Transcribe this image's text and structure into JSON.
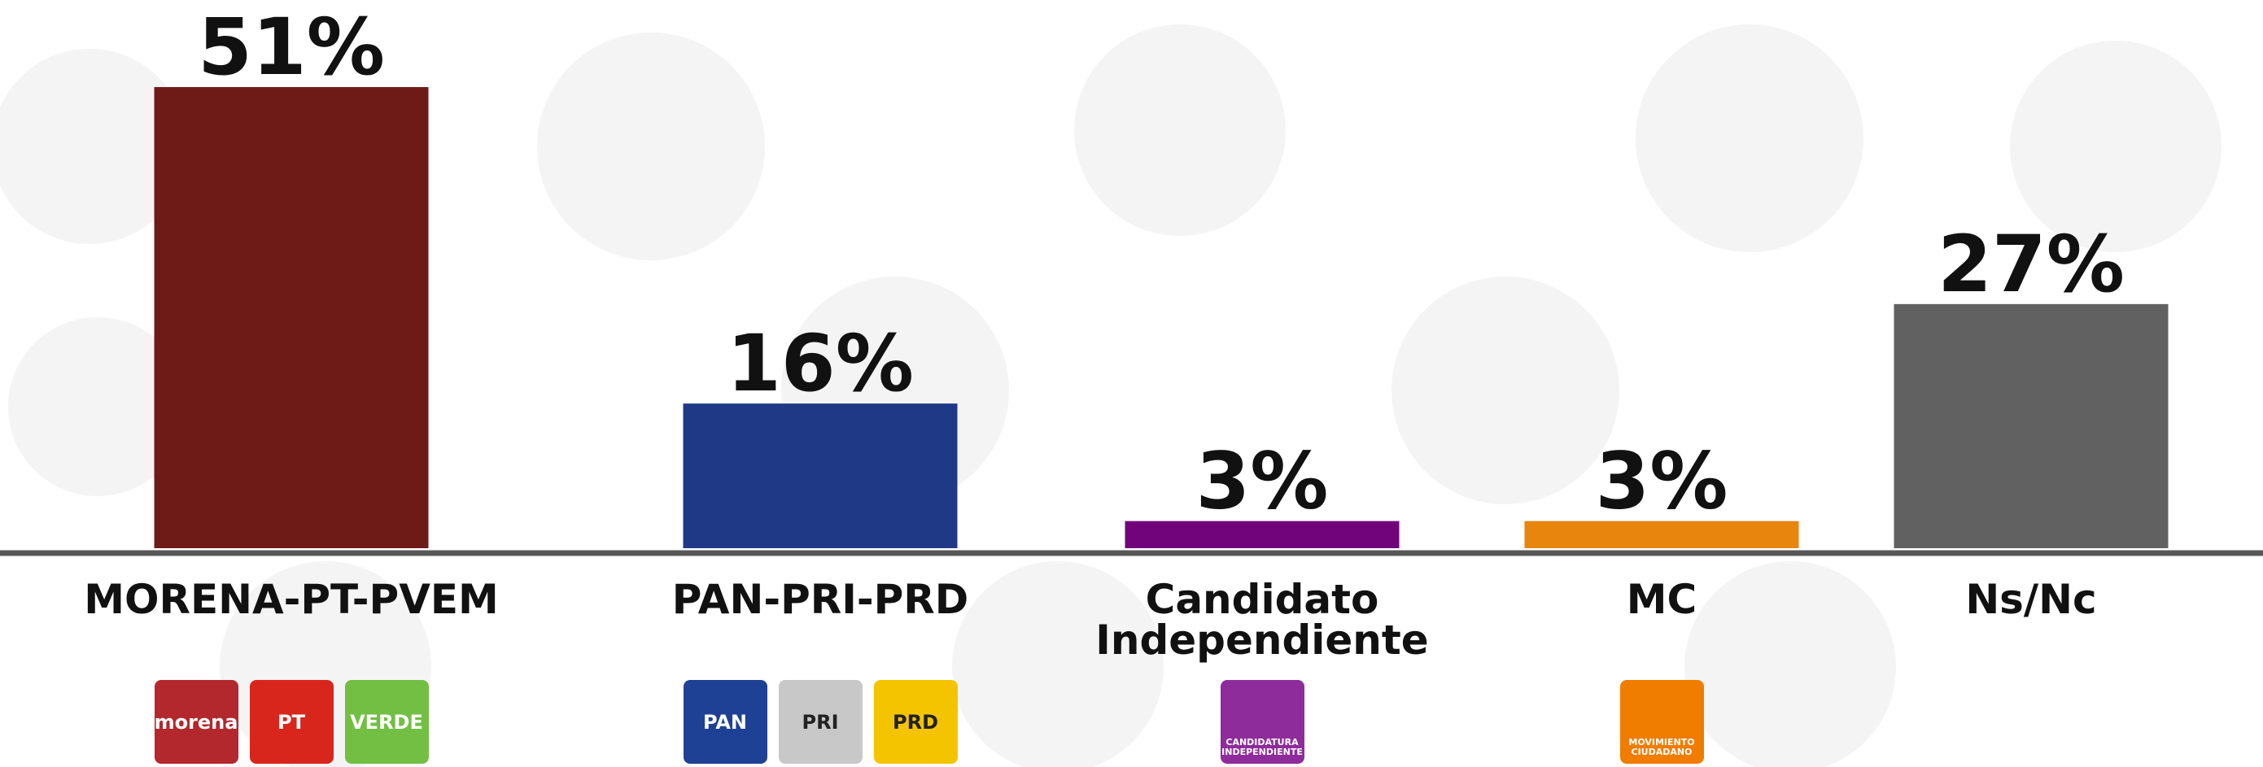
{
  "chart_data": {
    "type": "bar",
    "categories": [
      "MORENA-PT-PVEM",
      "PAN-PRI-PRD",
      "Candidato Independiente",
      "MC",
      "Ns/Nc"
    ],
    "values": [
      51,
      16,
      3,
      3,
      27
    ],
    "value_labels": [
      "51%",
      "16%",
      "3%",
      "3%",
      "27%"
    ],
    "colors": [
      "#6e1b17",
      "#1f3987",
      "#72047b",
      "#e8850c",
      "#616161"
    ],
    "ylim": [
      0,
      60
    ],
    "logos": [
      [
        {
          "label": "morena",
          "color": "#b3282d"
        },
        {
          "label": "PT",
          "color": "#d9261c"
        },
        {
          "label": "VERDE",
          "color": "#72bf44"
        }
      ],
      [
        {
          "label": "PAN",
          "color": "#1e4195"
        },
        {
          "label": "PRI",
          "color": "#c8c8c8"
        },
        {
          "label": "PRD",
          "color": "#f5c400"
        }
      ],
      [
        {
          "label": "CANDIDATURA INDEPENDIENTE",
          "color": "#8f2c9c"
        }
      ],
      [
        {
          "label": "MOVIMIENTO CIUDADANO",
          "color": "#f07c00"
        }
      ],
      []
    ]
  }
}
